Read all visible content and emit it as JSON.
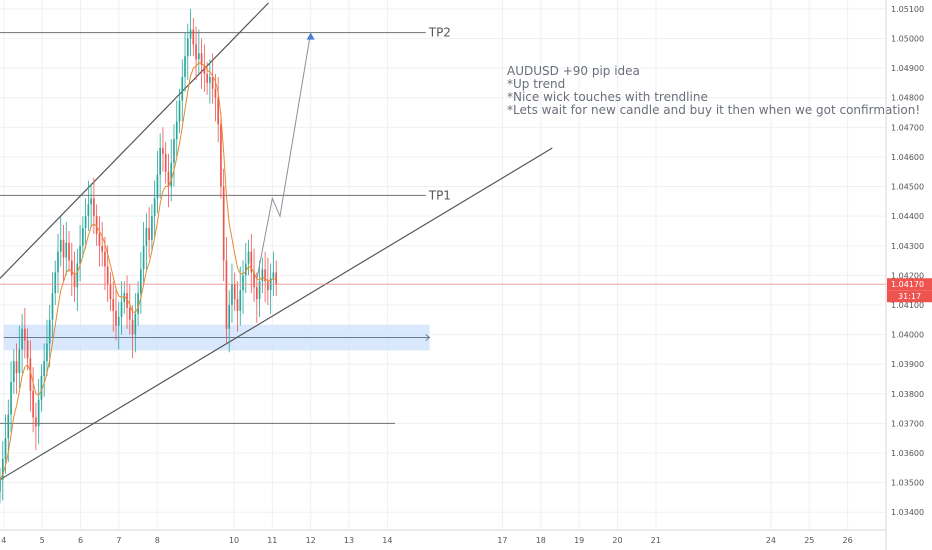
{
  "chart_data": {
    "type": "candlestick",
    "symbol_note": "AUDUSD +90 pip idea",
    "notes": [
      "*Up trend",
      "*Nice wick touches with trendline",
      "*Lets wait for new candle and buy it then when we got confirmation!"
    ],
    "y_ticks": [
      "1.05100",
      "1.05000",
      "1.04900",
      "1.04800",
      "1.04700",
      "1.04600",
      "1.04500",
      "1.04400",
      "1.04300",
      "1.04200",
      "1.04100",
      "1.04000",
      "1.03900",
      "1.03800",
      "1.03700",
      "1.03600",
      "1.03500",
      "1.03400"
    ],
    "y_tick_values": [
      1.051,
      1.05,
      1.049,
      1.048,
      1.047,
      1.046,
      1.045,
      1.044,
      1.043,
      1.042,
      1.041,
      1.04,
      1.039,
      1.038,
      1.037,
      1.036,
      1.035,
      1.034
    ],
    "ylim": [
      1.0334,
      1.0513
    ],
    "x_ticks": [
      "4",
      "5",
      "6",
      "7",
      "8",
      "10",
      "11",
      "12",
      "13",
      "14",
      "17",
      "18",
      "19",
      "20",
      "21",
      "24",
      "25",
      "26"
    ],
    "x_tick_values": [
      4,
      5,
      6,
      7,
      8,
      10,
      11,
      12,
      13,
      14,
      17,
      18,
      19,
      20,
      21,
      24,
      25,
      26
    ],
    "xlim": [
      3.9,
      27.0
    ],
    "current_price_label": "1.04170",
    "current_price": 1.0417,
    "countdown_label": "31:17",
    "levels": [
      {
        "name": "TP2",
        "price": 1.0502
      },
      {
        "name": "TP1",
        "price": 1.0447
      },
      {
        "name": "",
        "price": 1.037
      }
    ],
    "support_zone": {
      "low": 1.0396,
      "high": 1.0402
    },
    "trendlines": [
      {
        "x1": 3.9,
        "y1": 1.0419,
        "x2": 10.9,
        "y2": 1.0512
      },
      {
        "x1": 3.9,
        "y1": 1.0351,
        "x2": 18.3,
        "y2": 1.0463
      }
    ],
    "projection_path": [
      [
        10.6,
        1.0419
      ],
      [
        11.0,
        1.0446
      ],
      [
        11.2,
        1.044
      ],
      [
        12.0,
        1.0502
      ]
    ],
    "candles_start": 3.9,
    "candles_step": 0.072,
    "candles_close": [
      1.0351,
      1.0358,
      1.0365,
      1.0373,
      1.0384,
      1.0391,
      1.0387,
      1.0395,
      1.0402,
      1.0398,
      1.0392,
      1.0381,
      1.0372,
      1.0369,
      1.0378,
      1.0386,
      1.0391,
      1.0397,
      1.0405,
      1.0414,
      1.0421,
      1.0428,
      1.0432,
      1.0426,
      1.0431,
      1.0425,
      1.042,
      1.0416,
      1.0424,
      1.043,
      1.0436,
      1.044,
      1.0444,
      1.0446,
      1.044,
      1.0434,
      1.043,
      1.0428,
      1.0423,
      1.0417,
      1.0412,
      1.0408,
      1.0403,
      1.0406,
      1.0411,
      1.0414,
      1.0409,
      1.0405,
      1.04,
      1.0407,
      1.0414,
      1.0422,
      1.043,
      1.0436,
      1.0432,
      1.044,
      1.0446,
      1.0454,
      1.0463,
      1.0461,
      1.0455,
      1.045,
      1.0458,
      1.0466,
      1.0472,
      1.0479,
      1.0487,
      1.0494,
      1.05,
      1.0503,
      1.0498,
      1.0493,
      1.0495,
      1.0491,
      1.0488,
      1.0485,
      1.0487,
      1.0483,
      1.048,
      1.0471,
      1.045,
      1.0425,
      1.0402,
      1.041,
      1.0417,
      1.0412,
      1.0408,
      1.0415,
      1.042,
      1.0424,
      1.0428,
      1.0421,
      1.0416,
      1.0412,
      1.0418,
      1.0422,
      1.0418,
      1.0415,
      1.0419,
      1.0421,
      1.0417
    ]
  }
}
